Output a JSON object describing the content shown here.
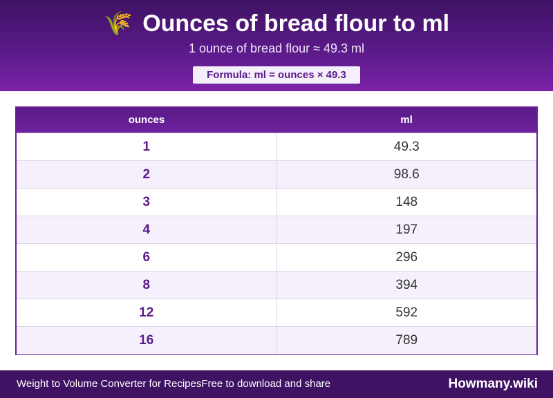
{
  "header": {
    "icon": "wheat-icon",
    "icon_glyph": "🌾",
    "title": "Ounces of bread flour to ml",
    "subtitle": "1 ounce of bread flour ≈ 49.3 ml",
    "formula": "Formula: ml = ounces × 49.3"
  },
  "table": {
    "columns": [
      "ounces",
      "ml"
    ],
    "rows": [
      [
        "1",
        "49.3"
      ],
      [
        "2",
        "98.6"
      ],
      [
        "3",
        "148"
      ],
      [
        "4",
        "197"
      ],
      [
        "6",
        "296"
      ],
      [
        "8",
        "394"
      ],
      [
        "12",
        "592"
      ],
      [
        "16",
        "789"
      ]
    ]
  },
  "footer": {
    "left_primary": "Weight to Volume Converter for Recipes",
    "left_secondary": "Free to download and share",
    "brand": "Howmany.wiki"
  },
  "colors": {
    "brand_purple": "#5a1a88",
    "header_dark": "#3f1263",
    "row_alt": "#f5f0fb"
  }
}
